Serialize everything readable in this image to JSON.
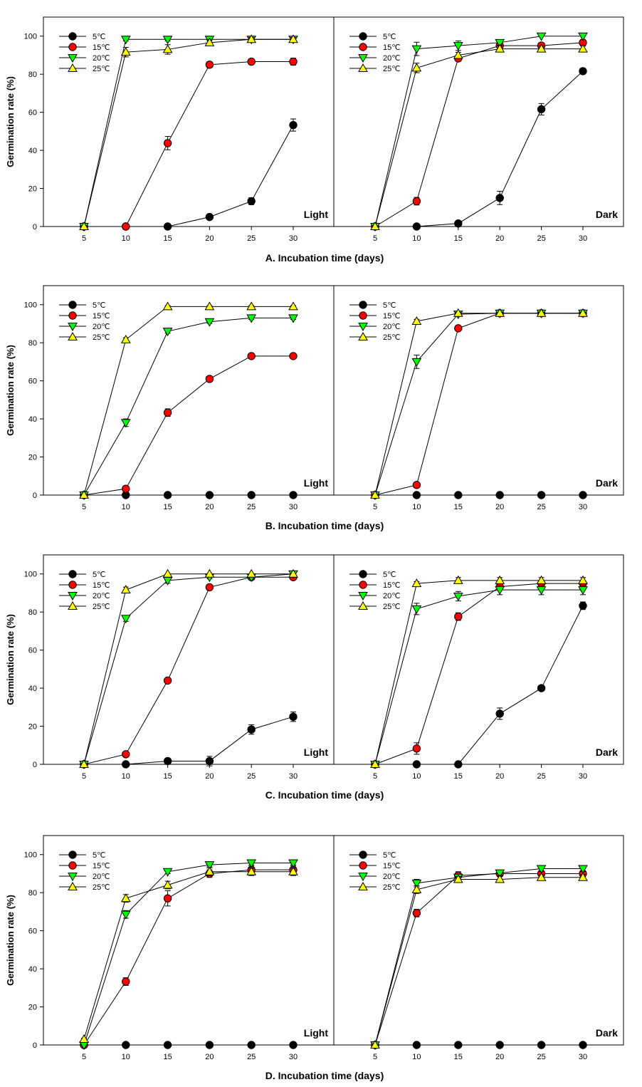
{
  "chart_data": [
    {
      "type": "line",
      "xlabel": "A. Incubation time (days)",
      "ylabel": "Germination rate (%)",
      "x": [
        5,
        10,
        15,
        20,
        25,
        30
      ],
      "ylim": [
        0,
        110
      ],
      "yticks": [
        0,
        20,
        40,
        60,
        80,
        100
      ],
      "panels": [
        {
          "label": "Light",
          "series": [
            {
              "name": "5℃",
              "marker": "circle",
              "color": "#000000",
              "values": [
                0,
                0,
                0,
                5,
                13.3,
                53.3
              ],
              "err": [
                0,
                0,
                0,
                0.8,
                1.8,
                3.2
              ]
            },
            {
              "name": "15℃",
              "marker": "circle",
              "color": "#ff0000",
              "values": [
                0,
                0,
                43.8,
                85,
                86.6,
                86.6
              ],
              "err": [
                0,
                0,
                3.5,
                1.5,
                1.5,
                1.8
              ]
            },
            {
              "name": "20℃",
              "marker": "triangle-down",
              "color": "#00ff00",
              "values": [
                0,
                98.3,
                98.3,
                98.3,
                98.3,
                98.3
              ],
              "err": [
                0,
                0.8,
                0.8,
                0.8,
                0.8,
                0.8
              ]
            },
            {
              "name": "25℃",
              "marker": "triangle-up",
              "color": "#ffff00",
              "values": [
                0,
                91.6,
                93,
                96.6,
                98.3,
                98.3
              ],
              "err": [
                0,
                2.5,
                2.5,
                1.5,
                1,
                1
              ]
            }
          ]
        },
        {
          "label": "Dark",
          "series": [
            {
              "name": "5℃",
              "marker": "circle",
              "color": "#000000",
              "values": [
                0,
                0,
                1.6,
                15,
                61.6,
                81.6
              ],
              "err": [
                0,
                0,
                0.8,
                3.5,
                3,
                1.5
              ]
            },
            {
              "name": "15℃",
              "marker": "circle",
              "color": "#ff0000",
              "values": [
                0,
                13.3,
                88.3,
                95,
                95,
                96.6
              ],
              "err": [
                0,
                2,
                1.5,
                1.5,
                1.5,
                1.5
              ]
            },
            {
              "name": "20℃",
              "marker": "triangle-down",
              "color": "#00ff00",
              "values": [
                0,
                93.3,
                95,
                96.6,
                100,
                100
              ],
              "err": [
                0,
                3.5,
                2.5,
                1.5,
                0,
                0
              ]
            },
            {
              "name": "25℃",
              "marker": "triangle-up",
              "color": "#ffff00",
              "values": [
                0,
                83.3,
                90,
                93.3,
                93.3,
                93.3
              ],
              "err": [
                0,
                2.5,
                1.5,
                1.5,
                1.5,
                1.5
              ]
            }
          ]
        }
      ]
    },
    {
      "type": "line",
      "xlabel": "B. Incubation time (days)",
      "ylabel": "Germination rate (%)",
      "x": [
        5,
        10,
        15,
        20,
        25,
        30
      ],
      "ylim": [
        0,
        110
      ],
      "yticks": [
        0,
        20,
        40,
        60,
        80,
        100
      ],
      "panels": [
        {
          "label": "Light",
          "series": [
            {
              "name": "5℃",
              "marker": "circle",
              "color": "#000000",
              "values": [
                0,
                0,
                0,
                0,
                0,
                0
              ],
              "err": [
                0,
                0,
                0,
                0,
                0,
                0
              ]
            },
            {
              "name": "15℃",
              "marker": "circle",
              "color": "#ff0000",
              "values": [
                0,
                3.3,
                43.3,
                61,
                73,
                73
              ],
              "err": [
                0,
                0.5,
                2,
                1,
                1,
                1
              ]
            },
            {
              "name": "20℃",
              "marker": "triangle-down",
              "color": "#00ff00",
              "values": [
                0,
                38,
                86,
                91,
                93,
                93
              ],
              "err": [
                0,
                2,
                1,
                0.8,
                0.8,
                0.8
              ]
            },
            {
              "name": "25℃",
              "marker": "triangle-up",
              "color": "#ffff00",
              "values": [
                0,
                81.6,
                99,
                99,
                99,
                99
              ],
              "err": [
                0,
                1,
                0.5,
                0.5,
                0.5,
                0.5
              ]
            }
          ]
        },
        {
          "label": "Dark",
          "series": [
            {
              "name": "5℃",
              "marker": "circle",
              "color": "#000000",
              "values": [
                0,
                0,
                0,
                0,
                0,
                0
              ],
              "err": [
                0,
                0,
                0,
                0,
                0,
                0
              ]
            },
            {
              "name": "15℃",
              "marker": "circle",
              "color": "#ff0000",
              "values": [
                0,
                5.3,
                87.6,
                95.5,
                95.5,
                95.5
              ],
              "err": [
                0,
                0.8,
                1,
                0.5,
                0.5,
                0.5
              ]
            },
            {
              "name": "20℃",
              "marker": "triangle-down",
              "color": "#00ff00",
              "values": [
                0,
                70,
                95,
                95.5,
                95.5,
                95.5
              ],
              "err": [
                0,
                3.5,
                1,
                0.5,
                0.5,
                0.5
              ]
            },
            {
              "name": "25℃",
              "marker": "triangle-up",
              "color": "#ffff00",
              "values": [
                0,
                91.3,
                95.5,
                95.5,
                95.5,
                95.5
              ],
              "err": [
                0,
                1,
                0.5,
                0.5,
                0.5,
                0.5
              ]
            }
          ]
        }
      ]
    },
    {
      "type": "line",
      "xlabel": "C. Incubation time (days)",
      "ylabel": "Germination rate (%)",
      "x": [
        5,
        10,
        15,
        20,
        25,
        30
      ],
      "ylim": [
        0,
        110
      ],
      "yticks": [
        0,
        20,
        40,
        60,
        80,
        100
      ],
      "panels": [
        {
          "label": "Light",
          "series": [
            {
              "name": "5℃",
              "marker": "circle",
              "color": "#000000",
              "values": [
                0,
                0,
                1.7,
                1.7,
                18.3,
                25
              ],
              "err": [
                0,
                0,
                0.8,
                2.5,
                2.5,
                2.5
              ]
            },
            {
              "name": "15℃",
              "marker": "circle",
              "color": "#ff0000",
              "values": [
                0,
                5.3,
                44,
                93,
                98.3,
                98.3
              ],
              "err": [
                0,
                1,
                1,
                1,
                0.8,
                0.8
              ]
            },
            {
              "name": "20℃",
              "marker": "triangle-down",
              "color": "#00ff00",
              "values": [
                0,
                76.6,
                96.6,
                98.3,
                98.3,
                100
              ],
              "err": [
                0,
                1.5,
                1.5,
                0.8,
                0.8,
                0
              ]
            },
            {
              "name": "25℃",
              "marker": "triangle-up",
              "color": "#ffff00",
              "values": [
                0,
                91.6,
                100,
                100,
                100,
                100
              ],
              "err": [
                0,
                1.5,
                0,
                0,
                0,
                0
              ]
            }
          ]
        },
        {
          "label": "Dark",
          "series": [
            {
              "name": "5℃",
              "marker": "circle",
              "color": "#000000",
              "values": [
                0,
                0,
                0,
                26.6,
                40,
                83.3
              ],
              "err": [
                0,
                0,
                0,
                3,
                1,
                2
              ]
            },
            {
              "name": "15℃",
              "marker": "circle",
              "color": "#ff0000",
              "values": [
                0,
                8.3,
                77.6,
                93.3,
                95,
                95
              ],
              "err": [
                0,
                3,
                2,
                1.5,
                1.5,
                1.5
              ]
            },
            {
              "name": "20℃",
              "marker": "triangle-down",
              "color": "#00ff00",
              "values": [
                0,
                81.6,
                88.3,
                91.6,
                91.6,
                91.6
              ],
              "err": [
                0,
                3,
                2.5,
                2.5,
                2.5,
                2.5
              ]
            },
            {
              "name": "25℃",
              "marker": "triangle-up",
              "color": "#ffff00",
              "values": [
                0,
                95,
                96.6,
                96.6,
                96.6,
                96.6
              ],
              "err": [
                0,
                1,
                1.5,
                1.5,
                1.5,
                1.5
              ]
            }
          ]
        }
      ]
    },
    {
      "type": "line",
      "xlabel": "D. Incubation time (days)",
      "ylabel": "Germination rate (%)",
      "x": [
        5,
        10,
        15,
        20,
        25,
        30
      ],
      "ylim": [
        0,
        110
      ],
      "yticks": [
        0,
        20,
        40,
        60,
        80,
        100
      ],
      "panels": [
        {
          "label": "Light",
          "series": [
            {
              "name": "5℃",
              "marker": "circle",
              "color": "#000000",
              "values": [
                0,
                0,
                0,
                0,
                0,
                0
              ],
              "err": [
                0,
                0,
                0,
                0,
                0,
                0
              ]
            },
            {
              "name": "15℃",
              "marker": "circle",
              "color": "#ff0000",
              "values": [
                0,
                33.3,
                77,
                90,
                92,
                92
              ],
              "err": [
                0,
                2,
                4,
                2,
                2,
                2
              ]
            },
            {
              "name": "20℃",
              "marker": "triangle-down",
              "color": "#00ff00",
              "values": [
                0,
                68.6,
                91,
                94.6,
                95.6,
                95.6
              ],
              "err": [
                0,
                2,
                1,
                1,
                1,
                1
              ]
            },
            {
              "name": "25℃",
              "marker": "triangle-up",
              "color": "#ffff00",
              "values": [
                3,
                77,
                84,
                91,
                91,
                91
              ],
              "err": [
                0.5,
                2,
                2,
                2,
                2,
                2
              ]
            }
          ]
        },
        {
          "label": "Dark",
          "series": [
            {
              "name": "5℃",
              "marker": "circle",
              "color": "#000000",
              "values": [
                0,
                0,
                0,
                0,
                0,
                0
              ],
              "err": [
                0,
                0,
                0,
                0,
                0,
                0
              ]
            },
            {
              "name": "15℃",
              "marker": "circle",
              "color": "#ff0000",
              "values": [
                0,
                69.3,
                89,
                90,
                90,
                90
              ],
              "err": [
                0,
                2,
                2,
                1.5,
                1.5,
                1.5
              ]
            },
            {
              "name": "20℃",
              "marker": "triangle-down",
              "color": "#00ff00",
              "values": [
                0,
                85,
                88,
                90.3,
                92.6,
                92.6
              ],
              "err": [
                0,
                2,
                1.5,
                1.5,
                1.5,
                1.5
              ]
            },
            {
              "name": "25℃",
              "marker": "triangle-up",
              "color": "#ffff00",
              "values": [
                0,
                81.6,
                87,
                87,
                88,
                88
              ],
              "err": [
                0,
                2,
                1.5,
                1.5,
                1.5,
                1.5
              ]
            }
          ]
        }
      ]
    }
  ]
}
